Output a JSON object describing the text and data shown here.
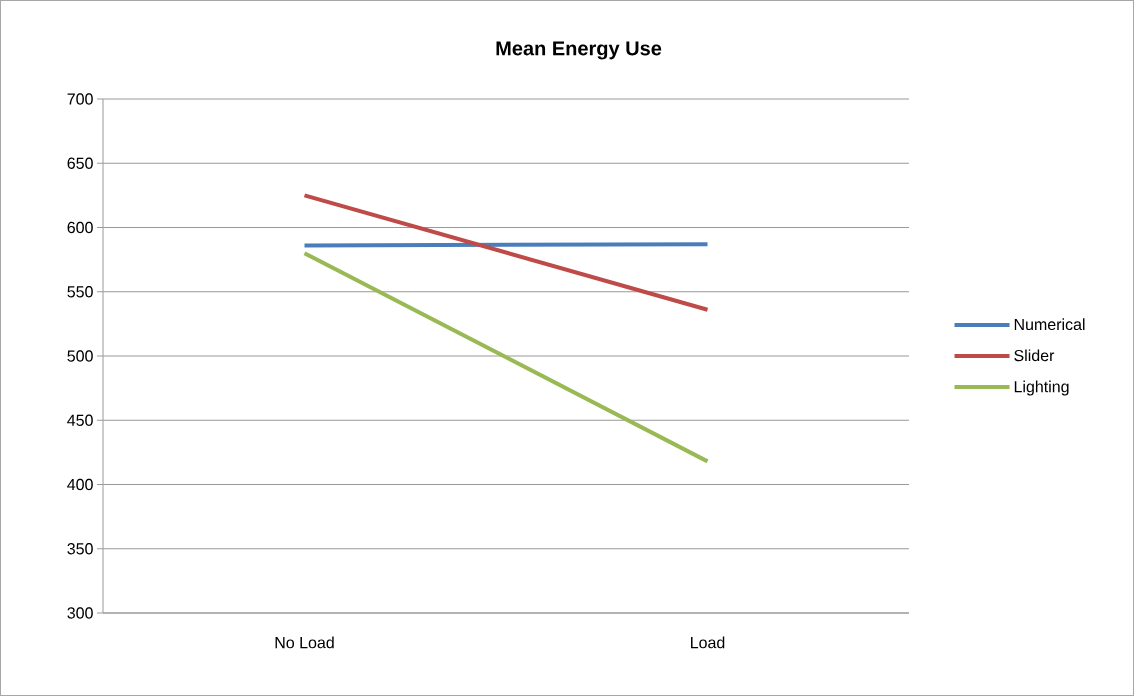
{
  "chart_data": {
    "type": "line",
    "title": "Mean Energy Use",
    "categories": [
      "No Load",
      "Load"
    ],
    "series": [
      {
        "name": "Numerical",
        "color": "#4a7ebb",
        "values": [
          586,
          587
        ]
      },
      {
        "name": "Slider",
        "color": "#be4b48",
        "values": [
          625,
          536
        ]
      },
      {
        "name": "Lighting",
        "color": "#98b954",
        "values": [
          580,
          418
        ]
      }
    ],
    "ylim": [
      300,
      700
    ],
    "yticks": [
      300,
      350,
      400,
      450,
      500,
      550,
      600,
      650,
      700
    ],
    "grid": "y",
    "legend": "right"
  }
}
